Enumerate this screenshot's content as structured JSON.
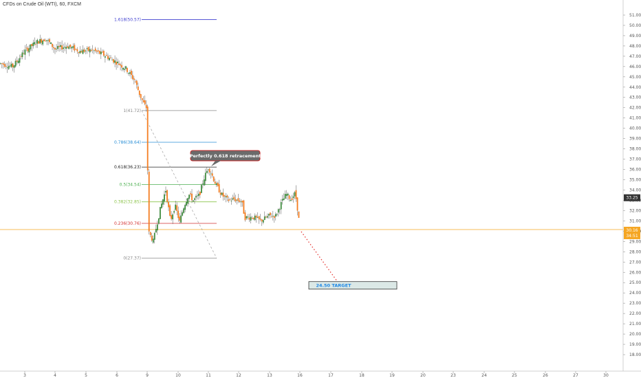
{
  "header": {
    "title": "CFDs on Crude Oil (WTI), 60, FXCM"
  },
  "chart_data": {
    "type": "candlestick",
    "title": "CFDs on Crude Oil (WTI), 60, FXCM",
    "x_ticks": [
      "3",
      "4",
      "5",
      "6",
      "9",
      "10",
      "11",
      "12",
      "13",
      "16",
      "17",
      "18",
      "19",
      "20",
      "23",
      "24",
      "25",
      "26",
      "27",
      "30"
    ],
    "x_tick_days": [
      3,
      4,
      5,
      6,
      9,
      10,
      11,
      12,
      13,
      16,
      17,
      18,
      19,
      20,
      23,
      24,
      25,
      26,
      27,
      30
    ],
    "y_ticks": [
      "18.00",
      "19.00",
      "20.00",
      "21.00",
      "22.00",
      "23.00",
      "24.00",
      "25.00",
      "26.00",
      "27.00",
      "28.00",
      "29.00",
      "30.00",
      "31.00",
      "32.00",
      "33.00",
      "34.00",
      "35.00",
      "36.00",
      "37.00",
      "38.00",
      "39.00",
      "40.00",
      "41.00",
      "42.00",
      "43.00",
      "44.00",
      "45.00",
      "46.00",
      "47.00",
      "48.00",
      "49.00",
      "50.00",
      "51.00"
    ],
    "ylim": [
      17.2,
      51.8
    ],
    "price_path": [
      [
        2.2,
        46.3
      ],
      [
        2.6,
        46.0
      ],
      [
        3.0,
        47.5
      ],
      [
        3.4,
        48.4
      ],
      [
        3.7,
        48.7
      ],
      [
        4.0,
        47.7
      ],
      [
        4.4,
        48.0
      ],
      [
        4.8,
        47.5
      ],
      [
        5.2,
        47.6
      ],
      [
        5.6,
        47.1
      ],
      [
        6.0,
        46.4
      ],
      [
        6.3,
        45.8
      ],
      [
        6.6,
        44.6
      ],
      [
        6.75,
        43.3
      ],
      [
        6.9,
        42.3
      ],
      [
        7.0,
        41.9
      ],
      [
        7.03,
        30.0
      ],
      [
        7.2,
        29.0
      ],
      [
        7.3,
        30.5
      ],
      [
        7.45,
        32.5
      ],
      [
        7.6,
        34.0
      ],
      [
        7.75,
        31.0
      ],
      [
        7.9,
        32.5
      ],
      [
        8.05,
        30.9
      ],
      [
        8.2,
        32.5
      ],
      [
        8.35,
        33.6
      ],
      [
        8.5,
        33.0
      ],
      [
        8.7,
        33.5
      ],
      [
        8.85,
        35.1
      ],
      [
        9.0,
        36.2
      ],
      [
        9.1,
        35.6
      ],
      [
        9.25,
        34.5
      ],
      [
        9.45,
        33.5
      ],
      [
        9.65,
        33.0
      ],
      [
        9.85,
        33.1
      ],
      [
        10.1,
        32.9
      ],
      [
        10.2,
        31.3
      ],
      [
        10.45,
        31.4
      ],
      [
        10.7,
        31.0
      ],
      [
        11.0,
        31.5
      ],
      [
        11.2,
        31.5
      ],
      [
        11.4,
        32.8
      ],
      [
        11.55,
        33.6
      ],
      [
        11.7,
        33.1
      ],
      [
        11.85,
        33.7
      ],
      [
        11.95,
        31.6
      ],
      [
        12.0,
        30.16
      ]
    ],
    "current_price": "30.16",
    "current_price_sub": "34:51",
    "last_close_label": "33.25",
    "horizontal_line": 30.16,
    "fib_levels": [
      {
        "label": "1.618(50.57)",
        "ratio": 1.618,
        "price": 50.57,
        "color": "#3f3fd0"
      },
      {
        "label": "1(41.72)",
        "ratio": 1,
        "price": 41.72,
        "color": "#888888"
      },
      {
        "label": "0.786(38.64)",
        "ratio": 0.786,
        "price": 38.64,
        "color": "#2a8fd6"
      },
      {
        "label": "0.618(36.23)",
        "ratio": 0.618,
        "price": 36.23,
        "color": "#222222"
      },
      {
        "label": "0.5(34.54)",
        "ratio": 0.5,
        "price": 34.54,
        "color": "#4caf50"
      },
      {
        "label": "0.382(32.85)",
        "ratio": 0.382,
        "price": 32.85,
        "color": "#8bc34a"
      },
      {
        "label": "0.236(30.76)",
        "ratio": 0.236,
        "price": 30.76,
        "color": "#d32f2f"
      },
      {
        "label": "0(27.37)",
        "ratio": 0,
        "price": 27.37,
        "color": "#888888"
      }
    ],
    "annotation": {
      "text": "Perfectly 0.618 retracement"
    },
    "target": {
      "text": "24.50 TARGET",
      "price": 24.5
    }
  }
}
